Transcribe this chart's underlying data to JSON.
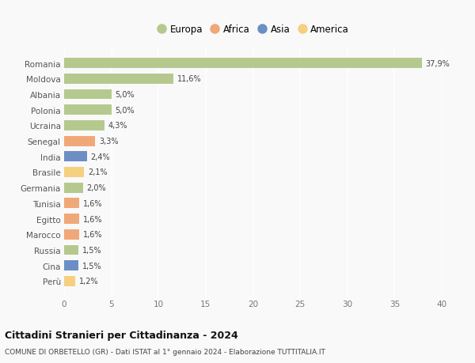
{
  "countries": [
    "Romania",
    "Moldova",
    "Albania",
    "Polonia",
    "Ucraina",
    "Senegal",
    "India",
    "Brasile",
    "Germania",
    "Tunisia",
    "Egitto",
    "Marocco",
    "Russia",
    "Cina",
    "Perù"
  ],
  "values": [
    37.9,
    11.6,
    5.0,
    5.0,
    4.3,
    3.3,
    2.4,
    2.1,
    2.0,
    1.6,
    1.6,
    1.6,
    1.5,
    1.5,
    1.2
  ],
  "labels": [
    "37,9%",
    "11,6%",
    "5,0%",
    "5,0%",
    "4,3%",
    "3,3%",
    "2,4%",
    "2,1%",
    "2,0%",
    "1,6%",
    "1,6%",
    "1,6%",
    "1,5%",
    "1,5%",
    "1,2%"
  ],
  "continents": [
    "Europa",
    "Europa",
    "Europa",
    "Europa",
    "Europa",
    "Africa",
    "Asia",
    "America",
    "Europa",
    "Africa",
    "Africa",
    "Africa",
    "Europa",
    "Asia",
    "America"
  ],
  "continent_colors": {
    "Europa": "#b5c98e",
    "Africa": "#f0a878",
    "Asia": "#6b8fc4",
    "America": "#f5d080"
  },
  "legend_order": [
    "Europa",
    "Africa",
    "Asia",
    "America"
  ],
  "title": "Cittadini Stranieri per Cittadinanza - 2024",
  "subtitle": "COMUNE DI ORBETELLO (GR) - Dati ISTAT al 1° gennaio 2024 - Elaborazione TUTTITALIA.IT",
  "xlim": [
    0,
    40
  ],
  "xticks": [
    0,
    5,
    10,
    15,
    20,
    25,
    30,
    35,
    40
  ],
  "background_color": "#f9f9f9",
  "grid_color": "#ffffff",
  "bar_height": 0.65
}
